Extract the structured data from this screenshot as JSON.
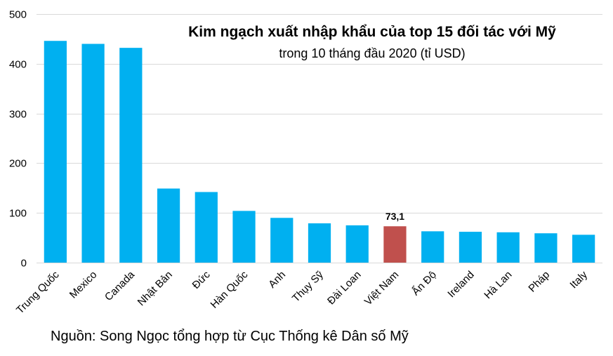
{
  "chart_data": {
    "type": "bar",
    "title": "Kim ngạch xuất nhập khẩu của top 15 đối tác với Mỹ",
    "subtitle": "trong 10 tháng đầu 2020 (tỉ USD)",
    "source": "Nguồn: Song Ngọc tổng hợp từ Cục Thống kê Dân số Mỹ",
    "categories": [
      "Trung Quốc",
      "Mexico",
      "Canada",
      "Nhật Bản",
      "Đức",
      "Hàn Quốc",
      "Anh",
      "Thụy Sỹ",
      "Đài Loan",
      "Việt Nam",
      "Ấn Độ",
      "Ireland",
      "Hà Lan",
      "Pháp",
      "Italy"
    ],
    "values": [
      446,
      440,
      432,
      149,
      142,
      104,
      90,
      79,
      75,
      73.1,
      63,
      62,
      61,
      59,
      56
    ],
    "highlight_index": 9,
    "data_labels": [
      {
        "index": 9,
        "text": "73,1"
      }
    ],
    "ylim": [
      0,
      500
    ],
    "yticks": [
      0,
      100,
      200,
      300,
      400,
      500
    ],
    "grid": true,
    "legend": "none",
    "colors": {
      "bar": "#00b0f0",
      "highlight": "#c0504d",
      "grid": "#d9d9d9"
    }
  }
}
